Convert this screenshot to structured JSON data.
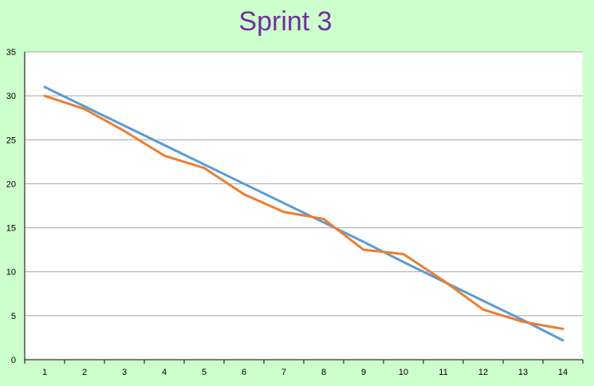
{
  "chart_data": {
    "type": "line",
    "title": "Sprint 3",
    "x": [
      1,
      2,
      3,
      4,
      5,
      6,
      7,
      8,
      9,
      10,
      11,
      12,
      13,
      14
    ],
    "ylim": [
      0,
      35
    ],
    "yticks": [
      0,
      5,
      10,
      15,
      20,
      25,
      30,
      35
    ],
    "grid": true,
    "series": [
      {
        "color": "#5b9bd5",
        "values": [
          31,
          28.8,
          26.6,
          24.4,
          22.2,
          20,
          17.8,
          15.6,
          13.4,
          11.1,
          8.9,
          6.7,
          4.5,
          2.2
        ]
      },
      {
        "color": "#ed7d31",
        "values": [
          30,
          28.5,
          26,
          23.2,
          21.8,
          18.8,
          16.8,
          16,
          12.5,
          12,
          9,
          5.7,
          4.3,
          3.5
        ]
      }
    ]
  },
  "colors": {
    "background": "#ccffcc",
    "plot_area": "#ffffff",
    "title": "#7030a0",
    "gridline": "#a6a6a6"
  }
}
